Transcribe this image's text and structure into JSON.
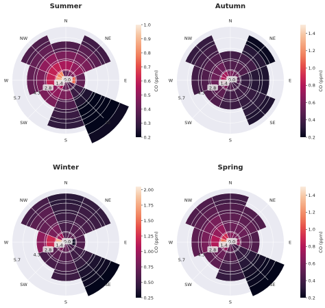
{
  "colormap": [
    "#03051a",
    "#2d1a3c",
    "#4c1d4b",
    "#6b1f57",
    "#8d1c5c",
    "#b01759",
    "#d02c51",
    "#e6504a",
    "#f07f5d",
    "#f5a37c",
    "#f6c5a2",
    "#faebdd"
  ],
  "chart_data": [
    {
      "type": "polar-bar",
      "title": "Summer",
      "directions": [
        "N",
        "NE",
        "E",
        "SE",
        "S",
        "SW",
        "W",
        "NW"
      ],
      "radial_labels": [
        "0.0",
        "1.4",
        "2.8",
        "4.3",
        "5.7"
      ],
      "radial_max": 7.2,
      "colorbar": {
        "label": "CO (ppm)",
        "min": 0.2,
        "max": 1.0,
        "ticks": [
          "0.2",
          "0.3",
          "0.4",
          "0.5",
          "0.6",
          "0.7",
          "0.8",
          "0.9",
          "1.0"
        ]
      },
      "sectors": [
        [
          0.4,
          0.55,
          0.45,
          0.35
        ],
        [
          0.45,
          0.5,
          0.45,
          0.38,
          0.32
        ],
        [
          0.75,
          0.4
        ],
        [
          0.35,
          0.3,
          0.25,
          0.2,
          0.2,
          0.2,
          0.22
        ],
        [
          0.4,
          0.45,
          0.35,
          0.3,
          0.28
        ],
        [
          0.55,
          0.5,
          0.45
        ],
        [
          0.85,
          0.6,
          0.45,
          0.4
        ],
        [
          0.8,
          0.6,
          0.5,
          0.4,
          0.35
        ]
      ]
    },
    {
      "type": "polar-bar",
      "title": "Autumn",
      "directions": [
        "N",
        "NE",
        "E",
        "SE",
        "S",
        "SW",
        "W",
        "NW"
      ],
      "radial_labels": [
        "0.0",
        "1.4",
        "2.8",
        "4.3",
        "5.7"
      ],
      "radial_max": 7.2,
      "colorbar": {
        "label": "CO (ppm)",
        "min": 0.2,
        "max": 1.5,
        "ticks": [
          "0.2",
          "0.4",
          "0.6",
          "0.8",
          "1.0",
          "1.2",
          "1.4"
        ]
      },
      "sectors": [
        [
          0.6,
          0.45,
          0.4
        ],
        [
          0.55,
          0.45,
          0.4,
          0.3,
          0.22
        ],
        [
          0.45,
          0.35,
          0.3,
          0.28
        ],
        [
          0.4,
          0.38,
          0.35,
          0.32,
          0.28
        ],
        [
          0.45,
          0.4,
          0.38
        ],
        [
          0.6,
          0.5,
          0.45
        ],
        [
          0.8,
          0.55,
          0.45,
          0.4
        ],
        [
          0.75,
          0.55,
          0.45,
          0.4,
          0.35
        ]
      ]
    },
    {
      "type": "polar-bar",
      "title": "Winter",
      "directions": [
        "N",
        "NE",
        "E",
        "SE",
        "S",
        "SW",
        "W",
        "NW"
      ],
      "radial_labels": [
        "0.0",
        "1.4",
        "2.8",
        "4.3",
        "5.7"
      ],
      "radial_max": 7.2,
      "colorbar": {
        "label": "CO (ppm)",
        "min": 0.25,
        "max": 2.05,
        "ticks": [
          "0.25",
          "0.50",
          "0.75",
          "1.00",
          "1.25",
          "1.50",
          "1.75",
          "2.00"
        ]
      },
      "sectors": [
        [
          0.6,
          0.55,
          0.5,
          0.45,
          0.4
        ],
        [
          0.65,
          0.6,
          0.55,
          0.5,
          0.45
        ],
        [
          0.3,
          0.6
        ],
        [
          0.55,
          0.5,
          0.45,
          0.35,
          0.3,
          0.25
        ],
        [
          0.7,
          0.6,
          0.55,
          0.5
        ],
        [
          0.8,
          0.65,
          0.55
        ],
        [
          1.8,
          1.2,
          0.9
        ],
        [
          1.0,
          0.8,
          0.7,
          0.65,
          0.55
        ]
      ]
    },
    {
      "type": "polar-bar",
      "title": "Spring",
      "directions": [
        "N",
        "NE",
        "E",
        "SE",
        "S",
        "SW",
        "W",
        "NW"
      ],
      "radial_labels": [
        "0.0",
        "1.4",
        "2.8",
        "4.3",
        "5.7"
      ],
      "radial_max": 7.2,
      "colorbar": {
        "label": "CO (ppm)",
        "min": 0.2,
        "max": 1.5,
        "ticks": [
          "0.2",
          "0.4",
          "0.6",
          "0.8",
          "1.0",
          "1.2",
          "1.4"
        ]
      },
      "sectors": [
        [
          0.65,
          0.55,
          0.5,
          0.45,
          0.4
        ],
        [
          0.6,
          0.55,
          0.5,
          0.45
        ],
        [
          0.7,
          0.5,
          0.45
        ],
        [
          0.4,
          0.35,
          0.3,
          0.25,
          0.22,
          0.2
        ],
        [
          0.5,
          0.45,
          0.4,
          0.35
        ],
        [
          0.7,
          0.55,
          0.5
        ],
        [
          1.1,
          0.8,
          0.6,
          0.5
        ],
        [
          0.9,
          0.7,
          0.6,
          0.5,
          0.45
        ]
      ]
    }
  ]
}
